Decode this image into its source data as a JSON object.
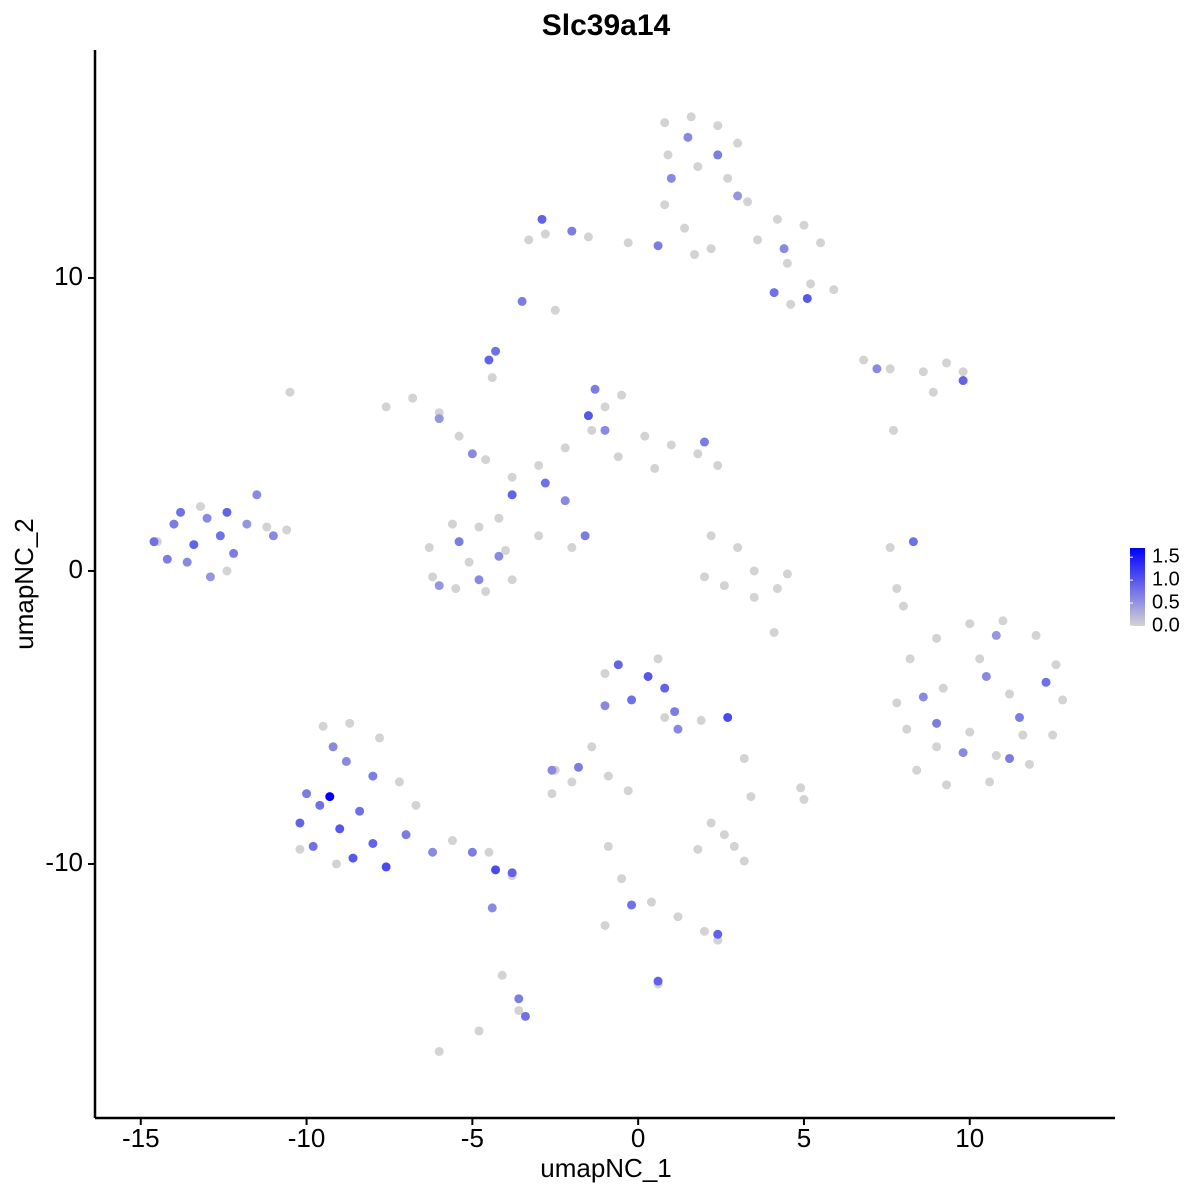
{
  "chart_data": {
    "type": "scatter",
    "title": "Slc39a14",
    "x_label": "umapNC_1",
    "y_label": "umapNC_2",
    "xlim": [
      -16.38,
      14.38
    ],
    "ylim": [
      -18.67,
      17.78
    ],
    "xticks": [
      -15,
      -10,
      -5,
      0,
      5,
      10
    ],
    "yticks": [
      -10,
      0,
      10
    ],
    "grid": false,
    "color_scale": {
      "low": "#d3d3d3",
      "high": "#0000ff",
      "lim": [
        0,
        1.7
      ],
      "ticks": [
        {
          "value": 0,
          "label": "0.0"
        },
        {
          "value": 0.5,
          "label": "0.5"
        },
        {
          "value": 1,
          "label": "1.0"
        },
        1.5
      ]
    },
    "x": [
      0.8,
      1.6,
      2.4,
      3.0,
      0.9,
      1.8,
      2.7,
      3.3,
      4.2,
      5.0,
      5.5,
      4.5,
      5.2,
      5.9,
      4.6,
      0.8,
      1.4,
      1.7,
      -0.3,
      -1.5,
      -2.8,
      -3.3,
      2.2,
      3.6,
      -2.5,
      -7.6,
      -6.8,
      -6.0,
      -5.4,
      -4.6,
      -3.8,
      -3.0,
      -2.2,
      -1.4,
      -1.0,
      -0.5,
      0.2,
      1.0,
      1.8,
      2.4,
      0.5,
      -0.6,
      -4.4,
      -10.5,
      -4.2,
      -3.0,
      -2.0,
      -6.3,
      -5.6,
      -4.8,
      -4.0,
      -3.8,
      -4.6,
      -5.5,
      -6.2,
      -5.1,
      2.2,
      3.0,
      3.5,
      2.6,
      3.5,
      4.2,
      2.0,
      4.5,
      4.1,
      6.8,
      7.6,
      8.6,
      9.3,
      9.8,
      8.9,
      7.7,
      7.6,
      7.8,
      8.0,
      8.2,
      9.0,
      10.0,
      11.0,
      12.0,
      12.6,
      12.8,
      12.5,
      11.8,
      10.6,
      9.3,
      8.4,
      8.1,
      9.2,
      10.3,
      11.2,
      10.0,
      11.6,
      9.0,
      10.8,
      7.8,
      -1.0,
      0.6,
      0.8,
      -1.4,
      -2.5,
      -2.0,
      -2.6,
      -0.9,
      -0.3,
      1.9,
      3.2,
      3.4,
      4.9,
      5.0,
      2.2,
      1.8,
      2.9,
      3.2,
      2.6,
      -0.9,
      -0.5,
      0.4,
      1.2,
      2.0,
      2.4,
      0.6,
      -1.0,
      -14.5,
      -13.2,
      -11.2,
      -10.6,
      -12.4,
      -9.5,
      -8.7,
      -7.8,
      -7.2,
      -6.7,
      -5.6,
      -4.5,
      -3.8,
      -10.2,
      -9.1,
      -4.1,
      -3.6,
      -4.8,
      -6.0,
      -14.6,
      -14.0,
      -13.4,
      -13.0,
      -12.6,
      -12.2,
      -13.6,
      -14.2,
      -11.8,
      -11.5,
      -12.9,
      -13.8,
      -12.4,
      -11.0,
      -10.2,
      -9.6,
      -9.0,
      -8.4,
      -8.0,
      -7.6,
      -9.8,
      -8.8,
      -8.0,
      -9.2,
      -10.0,
      -7.0,
      -6.2,
      -5.0,
      -4.3,
      -3.8,
      -8.6,
      -4.4,
      -3.6,
      -3.4,
      -6.0,
      -5.0,
      -3.8,
      -2.8,
      -4.2,
      -5.4,
      -6.0,
      -4.8,
      -4.3,
      -4.5,
      -1.3,
      -1.5,
      -1.0,
      2.0,
      -1.6,
      -2.2,
      1.5,
      2.4,
      1.0,
      3.0,
      -2.9,
      -2.0,
      4.4,
      5.1,
      4.1,
      0.6,
      -3.5,
      9.8,
      7.2,
      8.3,
      9.0,
      10.5,
      11.5,
      12.3,
      9.8,
      11.2,
      8.6,
      10.8,
      -0.6,
      0.3,
      -0.2,
      0.8,
      1.1,
      -1.0,
      1.2,
      2.7,
      -2.6,
      -1.8,
      -0.2,
      2.4,
      0.6,
      -9.3
    ],
    "y": [
      15.3,
      15.5,
      15.2,
      14.6,
      14.2,
      13.8,
      13.4,
      12.6,
      12.0,
      11.8,
      11.2,
      10.5,
      9.8,
      9.6,
      9.1,
      12.5,
      11.7,
      10.8,
      11.2,
      11.4,
      11.5,
      11.3,
      11.0,
      11.3,
      8.9,
      5.6,
      5.9,
      5.4,
      4.6,
      3.8,
      3.2,
      3.6,
      4.2,
      4.8,
      5.6,
      6.0,
      4.6,
      4.3,
      4.0,
      3.6,
      3.5,
      3.9,
      6.6,
      6.1,
      1.8,
      1.2,
      0.8,
      0.8,
      1.6,
      1.5,
      0.7,
      -0.3,
      -0.7,
      -0.6,
      -0.2,
      0.3,
      1.2,
      0.8,
      0.0,
      -0.5,
      -0.9,
      -0.6,
      -0.2,
      -0.1,
      -2.1,
      7.2,
      6.9,
      6.8,
      7.1,
      6.8,
      6.1,
      4.8,
      0.8,
      -0.6,
      -1.2,
      -3.0,
      -2.3,
      -1.8,
      -1.7,
      -2.2,
      -3.2,
      -4.4,
      -5.6,
      -6.6,
      -7.2,
      -7.3,
      -6.8,
      -5.4,
      -4.0,
      -3.0,
      -4.2,
      -5.5,
      -5.6,
      -6.0,
      -6.3,
      -4.5,
      -3.5,
      -3.0,
      -5.0,
      -6.0,
      -6.8,
      -7.2,
      -7.6,
      -7.0,
      -7.5,
      -5.1,
      -6.4,
      -7.7,
      -7.4,
      -7.8,
      -8.6,
      -9.5,
      -9.4,
      -9.9,
      -9.0,
      -9.4,
      -10.5,
      -11.3,
      -11.8,
      -12.3,
      -12.6,
      -14.1,
      -12.1,
      1.0,
      2.2,
      1.5,
      1.4,
      0.0,
      -5.3,
      -5.2,
      -5.7,
      -7.2,
      -8.0,
      -9.2,
      -9.6,
      -10.4,
      -9.5,
      -10.0,
      -13.8,
      -15.0,
      -15.7,
      -16.4,
      1.0,
      1.6,
      0.9,
      1.8,
      1.2,
      0.6,
      0.3,
      0.4,
      1.6,
      2.6,
      -0.2,
      2.0,
      2.0,
      1.2,
      -8.6,
      -8.0,
      -8.8,
      -8.2,
      -9.3,
      -10.1,
      -9.4,
      -6.5,
      -7.0,
      -6.0,
      -7.6,
      -9.0,
      -9.6,
      -9.6,
      -10.2,
      -10.3,
      -9.8,
      -11.5,
      -14.6,
      -15.2,
      5.2,
      4.0,
      2.6,
      3.0,
      0.5,
      1.0,
      -0.5,
      -0.3,
      7.5,
      7.2,
      6.2,
      5.3,
      4.8,
      4.4,
      1.2,
      2.4,
      14.8,
      14.2,
      13.4,
      12.8,
      12.0,
      11.6,
      11.0,
      9.3,
      9.5,
      11.1,
      9.2,
      6.5,
      6.9,
      1.0,
      -5.2,
      -3.6,
      -5.0,
      -3.8,
      -6.2,
      -6.4,
      -4.3,
      -2.2,
      -3.2,
      -3.6,
      -4.4,
      -4.0,
      -4.8,
      -4.6,
      -5.4,
      -5.0,
      -6.8,
      -6.7,
      -11.4,
      -12.4,
      -14.0,
      -7.7
    ],
    "values": [
      0,
      0,
      0,
      0,
      0,
      0,
      0,
      0,
      0,
      0,
      0,
      0,
      0,
      0,
      0,
      0,
      0,
      0,
      0,
      0,
      0,
      0,
      0,
      0,
      0,
      0,
      0,
      0,
      0,
      0,
      0,
      0,
      0,
      0,
      0,
      0,
      0,
      0,
      0,
      0,
      0,
      0,
      0,
      0,
      0,
      0,
      0,
      0,
      0,
      0,
      0,
      0,
      0,
      0,
      0,
      0,
      0,
      0,
      0,
      0,
      0,
      0,
      0,
      0,
      0,
      0,
      0,
      0,
      0,
      0,
      0,
      0,
      0,
      0,
      0,
      0,
      0,
      0,
      0,
      0,
      0,
      0,
      0,
      0,
      0,
      0,
      0,
      0,
      0,
      0,
      0,
      0,
      0,
      0,
      0,
      0,
      0,
      0,
      0,
      0,
      0,
      0,
      0,
      0,
      0,
      0,
      0,
      0,
      0,
      0,
      0,
      0,
      0,
      0,
      0,
      0,
      0,
      0,
      0,
      0,
      0,
      0,
      0,
      0,
      0,
      0,
      0,
      0,
      0,
      0,
      0,
      0,
      0,
      0,
      0,
      0,
      0,
      0,
      0,
      0,
      0,
      0,
      0.8,
      0.7,
      0.9,
      0.6,
      0.8,
      0.7,
      0.6,
      0.7,
      0.5,
      0.6,
      0.5,
      0.8,
      0.9,
      0.6,
      0.9,
      0.8,
      1.0,
      0.8,
      0.9,
      1.1,
      0.8,
      0.6,
      0.7,
      0.6,
      0.7,
      0.7,
      0.6,
      0.7,
      1.1,
      0.9,
      1.0,
      0.6,
      0.7,
      0.8,
      0.5,
      0.6,
      0.9,
      0.8,
      0.6,
      0.7,
      0.5,
      0.6,
      0.8,
      0.9,
      0.7,
      1.0,
      0.6,
      0.7,
      0.7,
      0.6,
      0.6,
      0.7,
      0.6,
      0.5,
      0.9,
      0.7,
      0.6,
      1.0,
      0.8,
      0.7,
      0.7,
      0.9,
      0.6,
      0.8,
      0.7,
      0.6,
      0.7,
      0.8,
      0.6,
      0.7,
      0.6,
      0.5,
      0.9,
      1.0,
      0.8,
      0.9,
      0.7,
      0.6,
      0.6,
      1.1,
      0.6,
      0.7,
      0.8,
      0.9,
      0.9,
      1.7
    ]
  }
}
